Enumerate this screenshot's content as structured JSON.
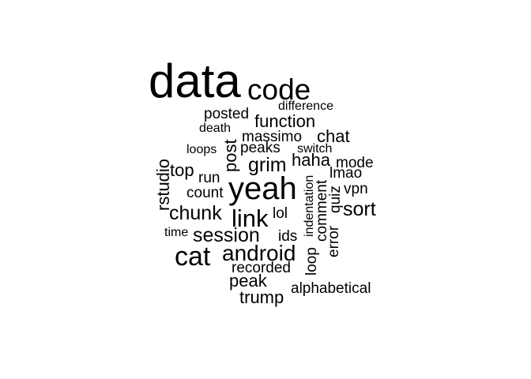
{
  "wordcloud": {
    "words": [
      "data",
      "code",
      "difference",
      "posted",
      "function",
      "death",
      "massimo",
      "chat",
      "loops",
      "post",
      "peaks",
      "switch",
      "grim",
      "haha",
      "mode",
      "rstudio",
      "top",
      "run",
      "lmao",
      "yeah",
      "count",
      "indentation",
      "comment",
      "quiz",
      "vpn",
      "chunk",
      "link",
      "lol",
      "sort",
      "time",
      "session",
      "ids",
      "error",
      "cat",
      "android",
      "loop",
      "recorded",
      "peak",
      "alphabetical",
      "trump"
    ],
    "ink_color": "#000000",
    "background_color": "#ffffff"
  }
}
